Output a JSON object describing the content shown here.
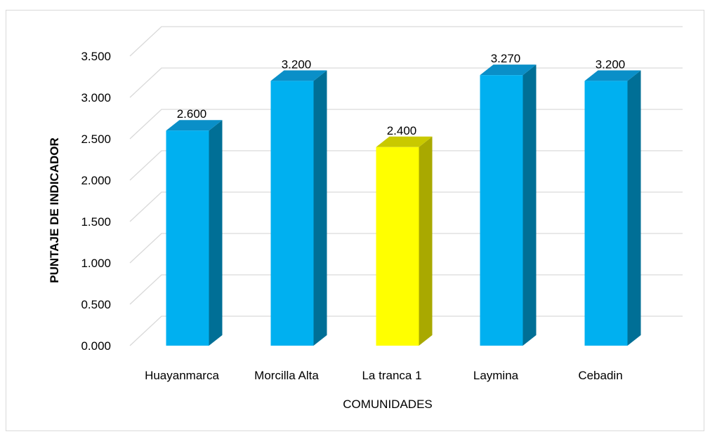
{
  "chart_data": {
    "type": "bar",
    "categories": [
      "Huayanmarca",
      "Morcilla Alta",
      "La tranca 1",
      "Laymina",
      "Cebadin"
    ],
    "values": [
      2.6,
      3.2,
      2.4,
      3.27,
      3.2
    ],
    "value_labels": [
      "2.600",
      "3.200",
      "2.400",
      "3.270",
      "3.200"
    ],
    "title": "",
    "xlabel": "COMUNIDADES",
    "ylabel": "PUNTAJE DE INDICADOR",
    "ylim": [
      0,
      3.5
    ],
    "yticks": [
      "0.000",
      "0.500",
      "1.000",
      "1.500",
      "2.000",
      "2.500",
      "3.000",
      "3.500"
    ],
    "ytick_values": [
      0,
      0.5,
      1,
      1.5,
      2,
      2.5,
      3,
      3.5
    ],
    "grid": true,
    "style": "3d-column",
    "colors": {
      "default_front": "#00b0f0",
      "default_top": "#0a8fc8",
      "default_side": "#006f96",
      "highlight_front": "#ffff00",
      "highlight_top": "#c9c900",
      "highlight_side": "#a9a900",
      "gridline": "#d9d9d9",
      "border": "#d9d9d9"
    },
    "highlight_index": 2
  }
}
